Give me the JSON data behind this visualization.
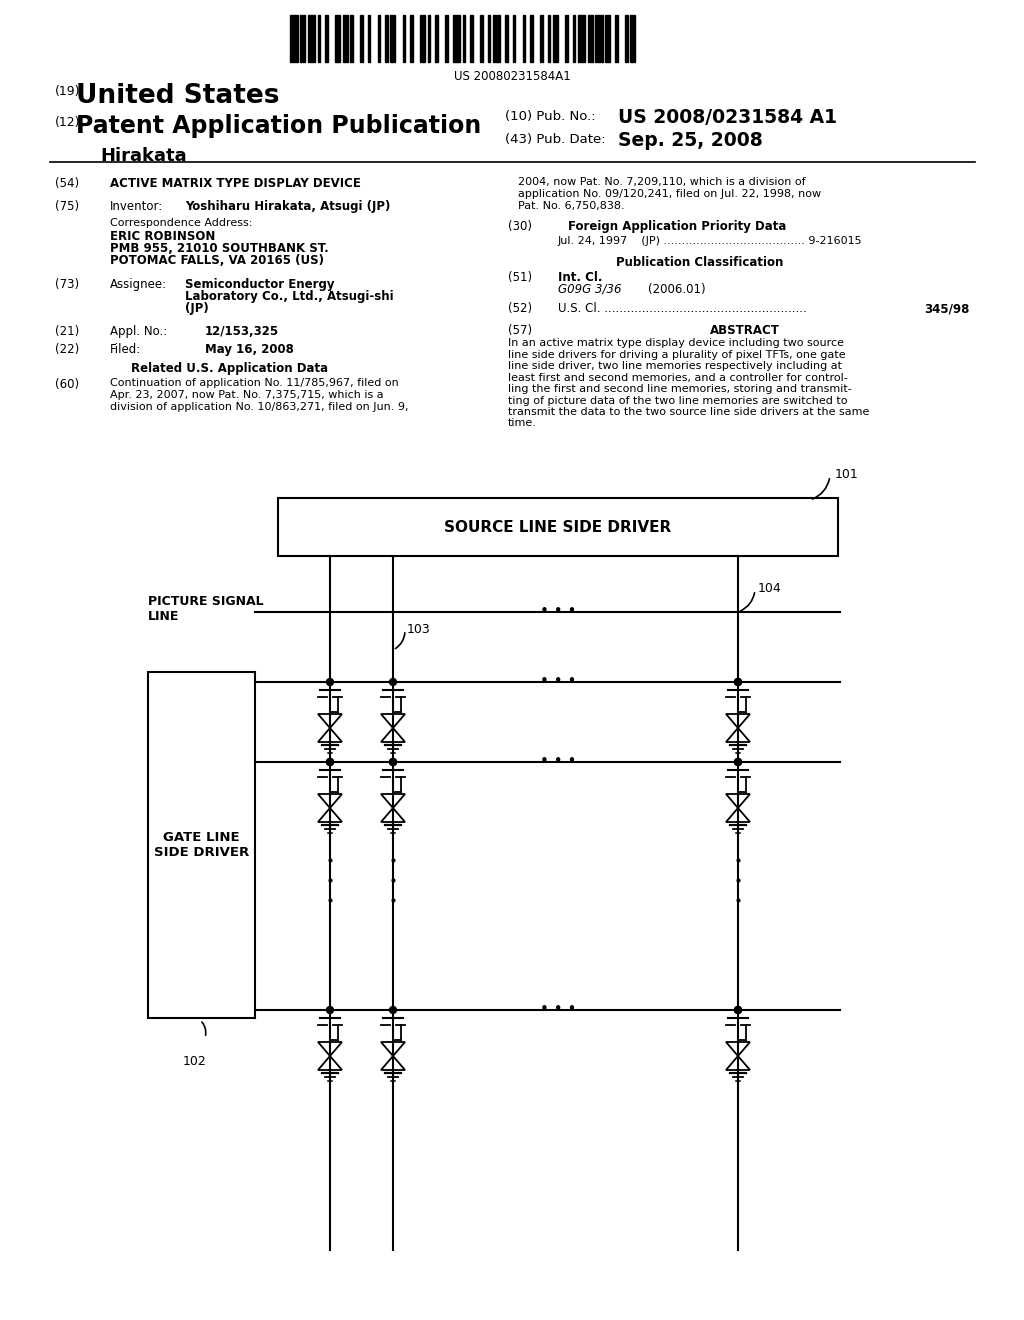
{
  "bg_color": "#ffffff",
  "barcode_text": "US 20080231584A1",
  "title_19": "(19)",
  "title_us": "United States",
  "title_12": "(12)",
  "title_pap": "Patent Application Publication",
  "title_inventor_name": "Hirakata",
  "pub_no_label": "(10) Pub. No.:",
  "pub_no_value": "US 2008/0231584 A1",
  "pub_date_label": "(43) Pub. Date:",
  "pub_date_value": "Sep. 25, 2008",
  "field54_label": "(54)",
  "field54_value": "ACTIVE MATRIX TYPE DISPLAY DEVICE",
  "field75_label": "(75)",
  "field75_key": "Inventor:",
  "field75_value": "Yoshiharu Hirakata, Atsugi (JP)",
  "corr_label": "Correspondence Address:",
  "corr_line1": "ERIC ROBINSON",
  "corr_line2": "PMB 955, 21010 SOUTHBANK ST.",
  "corr_line3": "POTOMAC FALLS, VA 20165 (US)",
  "field73_label": "(73)",
  "field73_key": "Assignee:",
  "field73_value1": "Semiconductor Energy",
  "field73_value2": "Laboratory Co., Ltd., Atsugi-shi",
  "field73_value3": "(JP)",
  "field21_label": "(21)",
  "field21_key": "Appl. No.:",
  "field21_value": "12/153,325",
  "field22_label": "(22)",
  "field22_key": "Filed:",
  "field22_value": "May 16, 2008",
  "related_title": "Related U.S. Application Data",
  "field60_label": "(60)",
  "field60_lines": [
    "Continuation of application No. 11/785,967, filed on",
    "Apr. 23, 2007, now Pat. No. 7,375,715, which is a",
    "division of application No. 10/863,271, filed on Jun. 9,"
  ],
  "right_cont_lines": [
    "2004, now Pat. No. 7,209,110, which is a division of",
    "application No. 09/120,241, filed on Jul. 22, 1998, now",
    "Pat. No. 6,750,838."
  ],
  "field30_label": "(30)",
  "field30_title": "Foreign Application Priority Data",
  "field30_data": "Jul. 24, 1997    (JP) ....................................... 9-216015",
  "pub_class_title": "Publication Classification",
  "field51_label": "(51)",
  "field51_key": "Int. Cl.",
  "field51_value1": "G09G 3/36",
  "field51_value2": "(2006.01)",
  "field52_label": "(52)",
  "field52_key": "U.S. Cl. ......................................................",
  "field52_value": "345/98",
  "field57_label": "(57)",
  "field57_title": "ABSTRACT",
  "abstract_lines": [
    "In an active matrix type display device including two source",
    "line side drivers for driving a plurality of pixel TFTs, one gate",
    "line side driver, two line memories respectively including at",
    "least first and second memories, and a controller for control-",
    "ling the first and second line memories, storing and transmit-",
    "ting of picture data of the two line memories are switched to",
    "transmit the data to the two source line side drivers at the same",
    "time."
  ],
  "diagram_label_101": "101",
  "diagram_label_102": "102",
  "diagram_label_103": "103",
  "diagram_label_104": "104",
  "diagram_source_driver": "SOURCE LINE SIDE DRIVER",
  "diagram_gate_driver": "GATE LINE\nSIDE DRIVER",
  "diagram_picture_signal": "PICTURE SIGNAL\nLINE"
}
